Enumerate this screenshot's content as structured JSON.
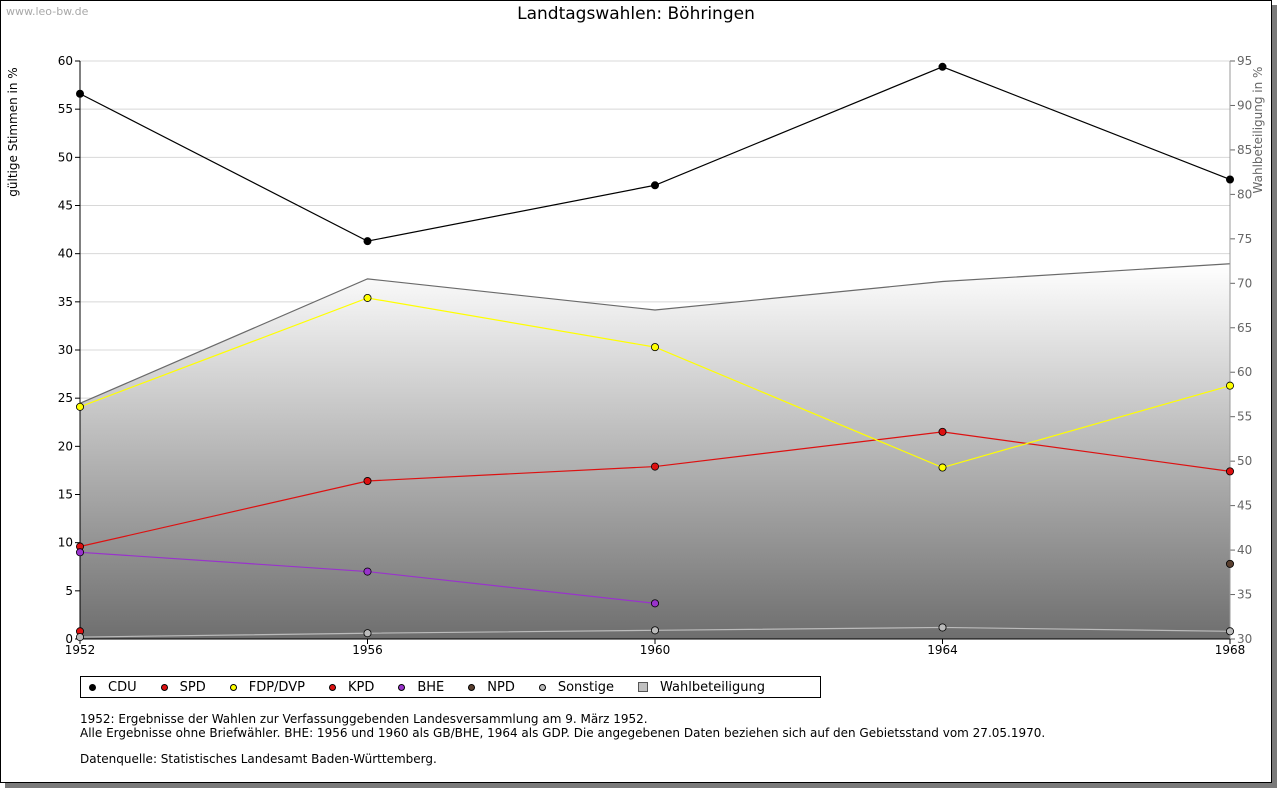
{
  "watermark": "www.leo-bw.de",
  "chart_data": {
    "type": "line",
    "title": "Landtagswahlen: Böhringen",
    "ylabel": "gültige Stimmen in %",
    "y2label": "Wahlbeteiligung in %",
    "x": [
      "1952",
      "1956",
      "1960",
      "1964",
      "1968"
    ],
    "ylim": [
      0,
      60
    ],
    "yticks": [
      0,
      5,
      10,
      15,
      20,
      25,
      30,
      35,
      40,
      45,
      50,
      55,
      60
    ],
    "y2lim": [
      30,
      95
    ],
    "y2ticks": [
      30,
      35,
      40,
      45,
      50,
      55,
      60,
      65,
      70,
      75,
      80,
      85,
      90,
      95
    ],
    "grid": true,
    "legend_position": "bottom",
    "series": [
      {
        "name": "CDU",
        "color": "#000000",
        "values": [
          56.6,
          41.3,
          47.1,
          59.4,
          47.7
        ]
      },
      {
        "name": "SPD",
        "color": "#dd1111",
        "values": [
          9.6,
          16.4,
          17.9,
          21.5,
          17.4
        ]
      },
      {
        "name": "FDP/DVP",
        "color": "#ffff00",
        "values": [
          24.1,
          35.4,
          30.3,
          17.8,
          26.3
        ]
      },
      {
        "name": "KPD",
        "color": "#dd1111",
        "values": [
          0.8,
          null,
          null,
          null,
          null
        ]
      },
      {
        "name": "BHE",
        "color": "#9933cc",
        "values": [
          9.0,
          7.0,
          3.7,
          null,
          null
        ]
      },
      {
        "name": "NPD",
        "color": "#5a4030",
        "values": [
          null,
          null,
          null,
          null,
          7.8
        ]
      },
      {
        "name": "Sonstige",
        "color": "#bbbbbb",
        "values": [
          0.2,
          0.6,
          0.9,
          1.2,
          0.8
        ]
      }
    ],
    "area_series": {
      "name": "Wahlbeteiligung",
      "axis": "right",
      "values": [
        56.5,
        70.5,
        67.0,
        70.2,
        72.2
      ]
    }
  },
  "notes": {
    "line1": "1952: Ergebnisse der Wahlen zur Verfassunggebenden Landesversammlung am 9. März 1952.",
    "line2": "Alle Ergebnisse ohne Briefwähler. BHE: 1956 und 1960 als GB/BHE, 1964 als GDP. Die angegebenen Daten beziehen sich auf den Gebietsstand vom 27.05.1970.",
    "source": "Datenquelle: Statistisches Landesamt Baden-Württemberg."
  }
}
